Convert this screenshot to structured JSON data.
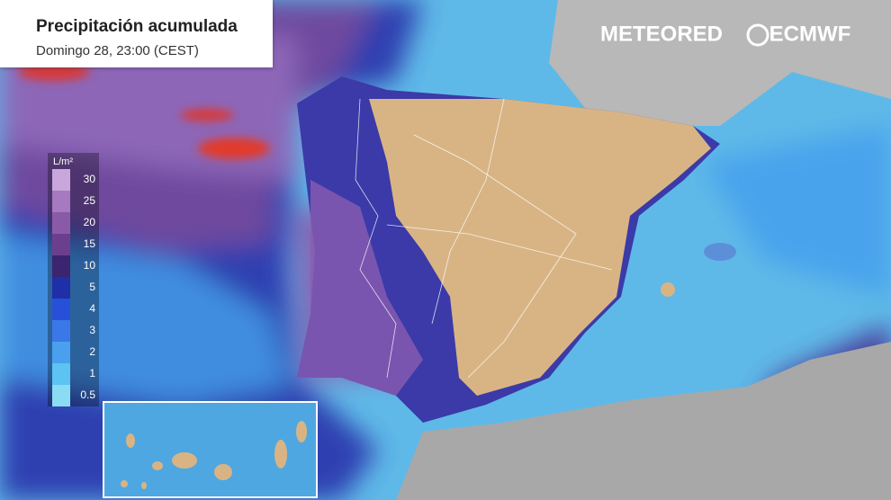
{
  "header": {
    "title": "Precipitación acumulada",
    "subtitle": "Domingo 28, 23:00 (CEST)"
  },
  "brands": {
    "left": "METEORED",
    "right": "ECMWF"
  },
  "legend": {
    "unit": "L/m²",
    "items": [
      {
        "label": "30",
        "color": "#c9a6dc"
      },
      {
        "label": "25",
        "color": "#a679c0"
      },
      {
        "label": "20",
        "color": "#8a5aa8"
      },
      {
        "label": "15",
        "color": "#6c3f8e"
      },
      {
        "label": "10",
        "color": "#3b2470"
      },
      {
        "label": "5",
        "color": "#1f2fa8"
      },
      {
        "label": "4",
        "color": "#2650d8"
      },
      {
        "label": "3",
        "color": "#3a78e8"
      },
      {
        "label": "2",
        "color": "#4aa0ef"
      },
      {
        "label": "1",
        "color": "#5cc3f2"
      },
      {
        "label": "0.5",
        "color": "#8adcf5"
      }
    ]
  }
}
